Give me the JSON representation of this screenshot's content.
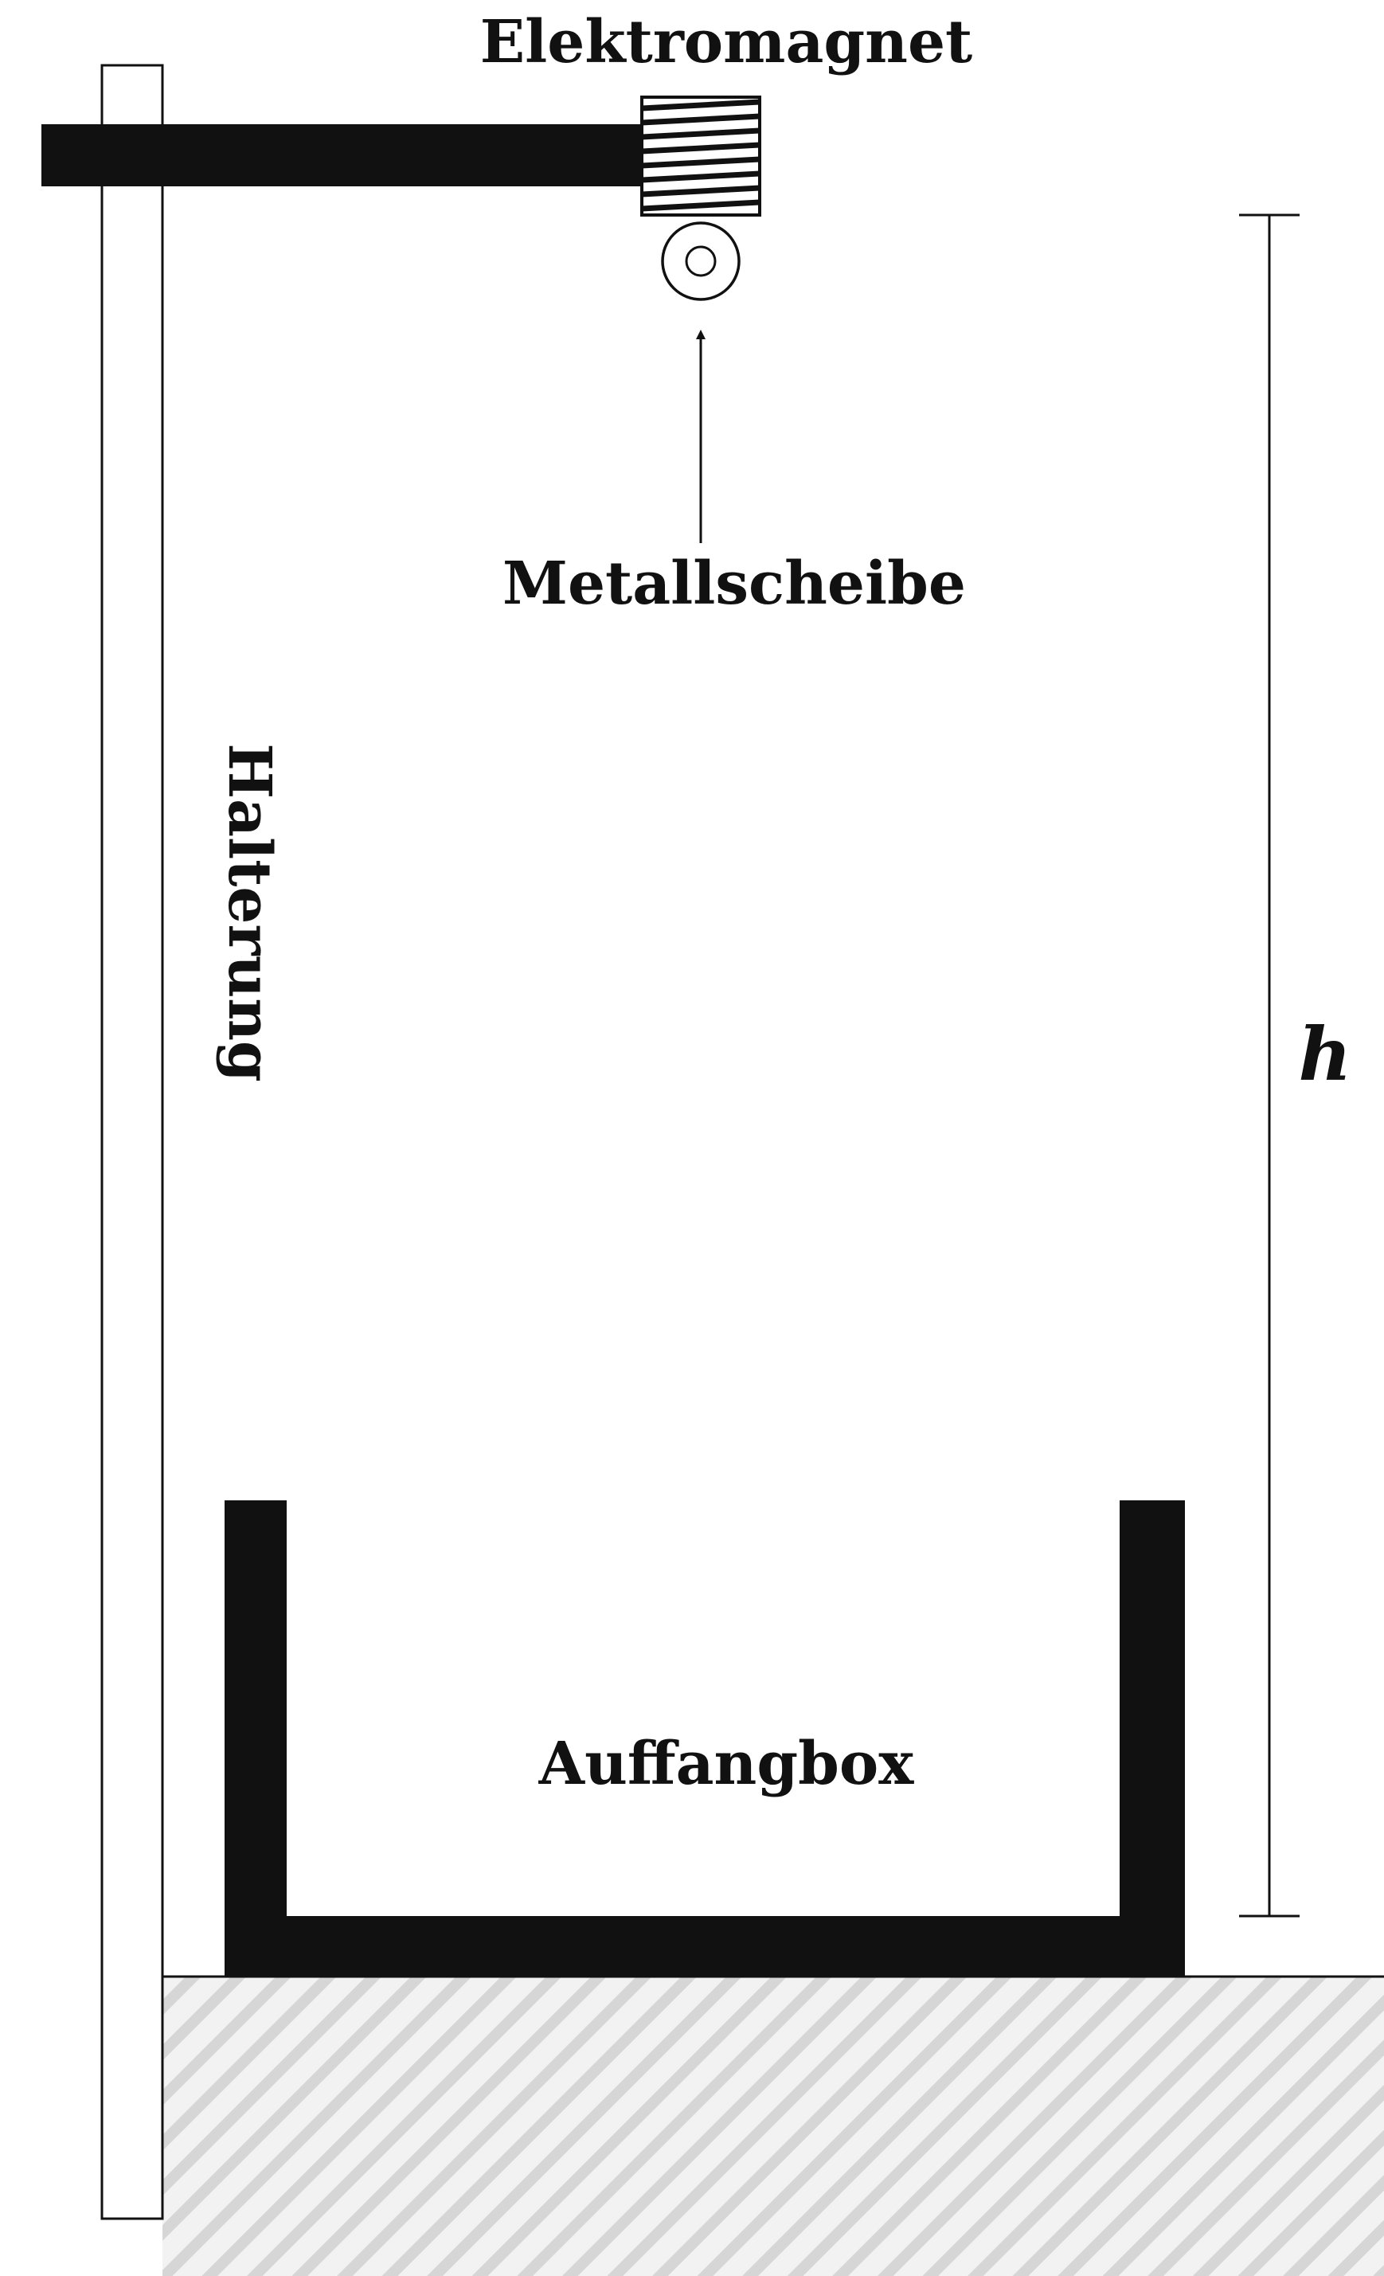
{
  "labels": {
    "electromagnet": "Elektromagnet",
    "disc": "Metallscheibe",
    "stand": "Halterung",
    "box": "Auffangbox",
    "height": "h"
  },
  "colors": {
    "ink": "#111111",
    "ground_hatch": "#d9d9d9",
    "ground_fill": "#f2f2f2",
    "background": "#ffffff"
  }
}
